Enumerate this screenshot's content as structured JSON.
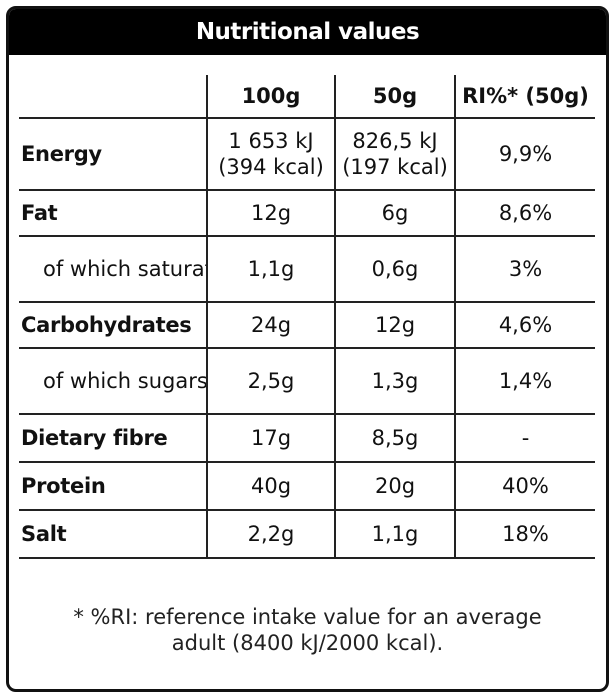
{
  "title": "Nutritional values",
  "columns": [
    "100g",
    "50g",
    "RI%* (50g)"
  ],
  "rows": {
    "energy": {
      "label": "Energy",
      "v100_kj": "1 653 kJ",
      "v100_kcal": "(394 kcal)",
      "v50_kj": "826,5 kJ",
      "v50_kcal": "(197 kcal)",
      "ri": "9,9%"
    },
    "fat": {
      "label": "Fat",
      "v100": "12g",
      "v50": "6g",
      "ri": "8,6%"
    },
    "saturated": {
      "label": "of which saturated fat",
      "v100": "1,1g",
      "v50": "0,6g",
      "ri": "3%"
    },
    "carbs": {
      "label": "Carbohydrates",
      "v100": "24g",
      "v50": "12g",
      "ri": "4,6%"
    },
    "sugars": {
      "label": "of which sugars",
      "v100": "2,5g",
      "v50": "1,3g",
      "ri": "1,4%"
    },
    "fibre": {
      "label": "Dietary fibre",
      "v100": "17g",
      "v50": "8,5g",
      "ri": "-"
    },
    "protein": {
      "label": "Protein",
      "v100": "40g",
      "v50": "20g",
      "ri": "40%"
    },
    "salt": {
      "label": "Salt",
      "v100": "2,2g",
      "v50": "1,1g",
      "ri": "18%"
    }
  },
  "footnote_line1": "* %RI: reference intake value for an average",
  "footnote_line2": "adult (8400 kJ/2000 kcal)."
}
